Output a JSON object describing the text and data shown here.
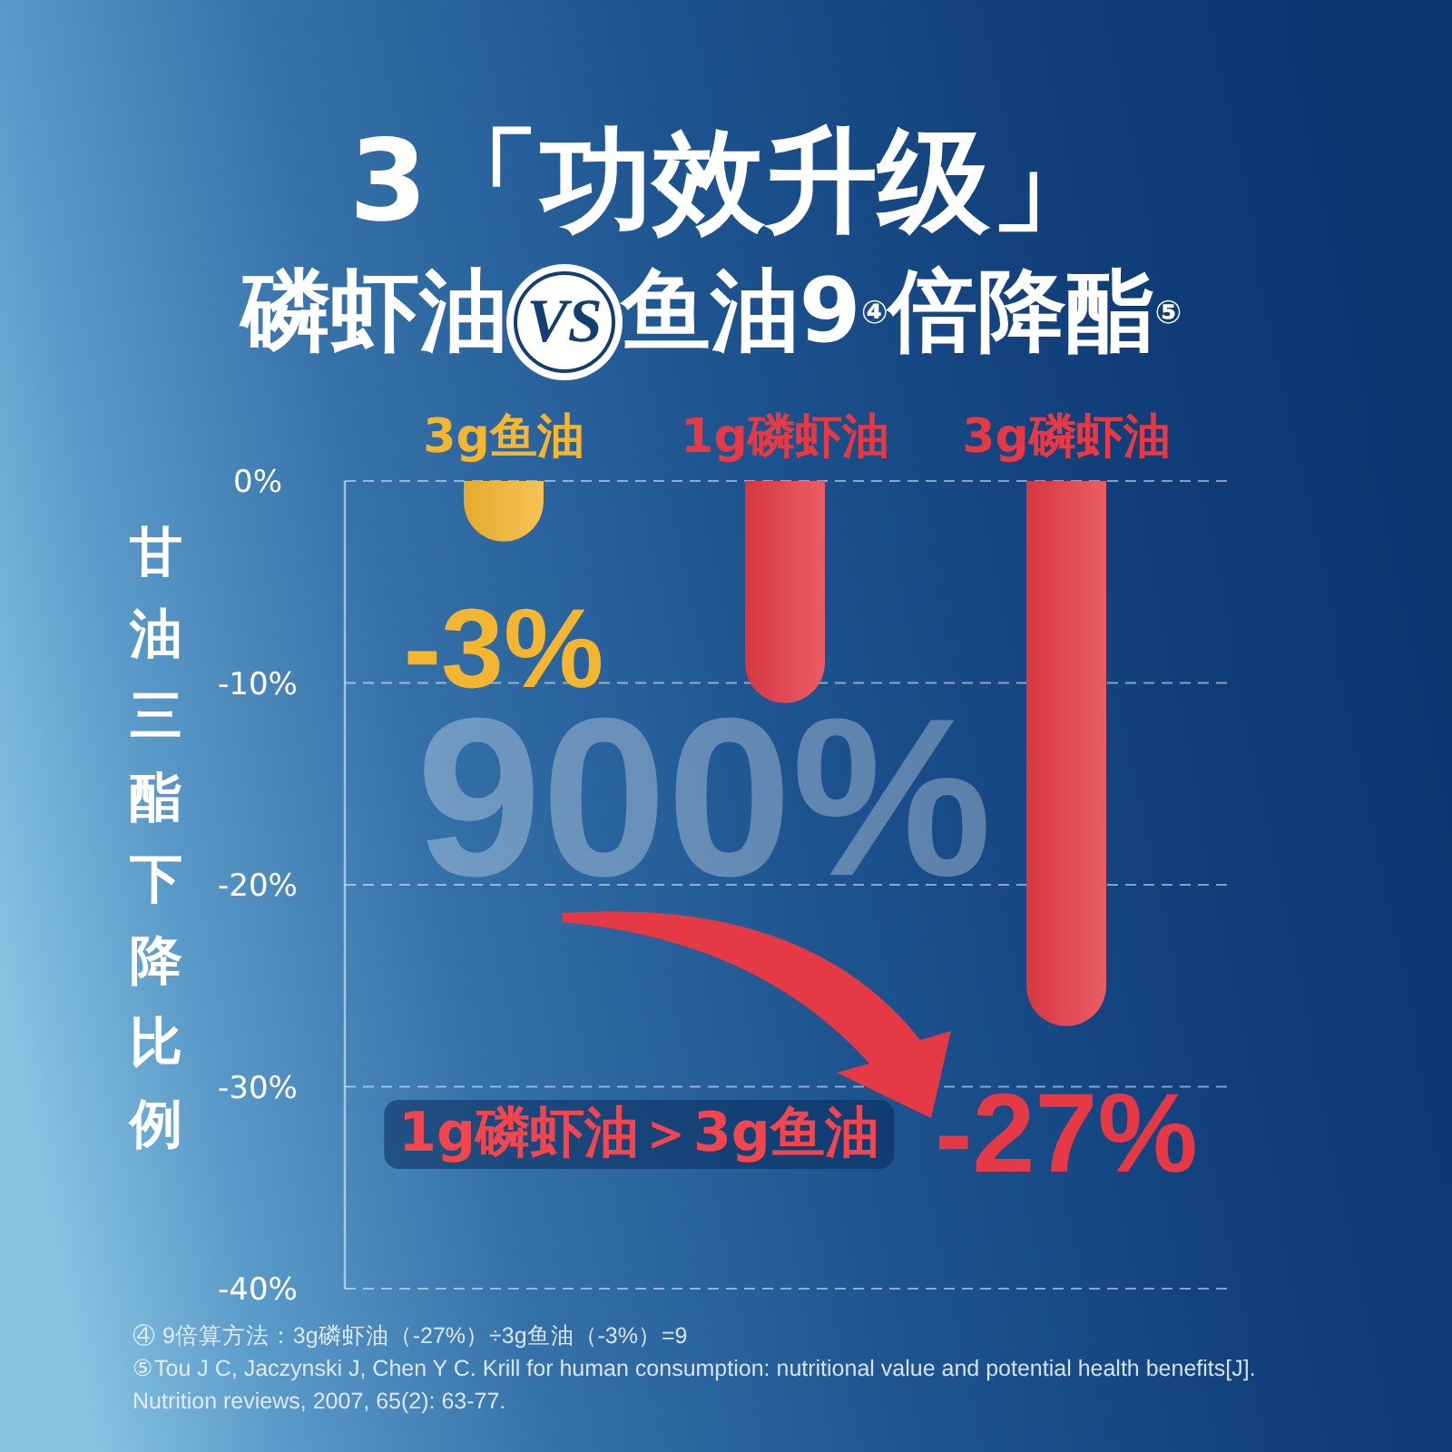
{
  "chart_data": {
    "type": "bar",
    "title": "3「功效升级」",
    "subtitle": "磷虾油 VS 鱼油9$^{④}$倍降酯$^{⑤}$",
    "ylabel": "甘油三酯下降比例",
    "categories": [
      "3g鱼油",
      "1g磷虾油",
      "3g磷虾油"
    ],
    "values": [
      -3,
      -11,
      -27
    ],
    "colors": [
      "#f4b530",
      "#e53a45",
      "#e53a45"
    ],
    "value_labels": [
      "-3%",
      null,
      "-27%"
    ],
    "ylim": [
      -40,
      0
    ],
    "yticks": [
      {
        "value": 0,
        "label": "0%"
      },
      {
        "value": -10,
        "label": "-10%"
      },
      {
        "value": -20,
        "label": "-20%"
      },
      {
        "value": -30,
        "label": "-30%"
      },
      {
        "value": -40,
        "label": "-40%"
      }
    ],
    "grid": "y",
    "annotations": [
      "900%",
      "1g磷虾油＞3g鱼油",
      "④ 9倍算方法：3g磷虾油（-27%）÷3g鱼油（-3%）=9",
      "⑤Tou J C, Jaczynski J, Chen Y C. Krill for human consumption: nutritional value and potential health benefits[J]. Nutrition reviews, 2007, 65(2): 63-77."
    ]
  }
}
